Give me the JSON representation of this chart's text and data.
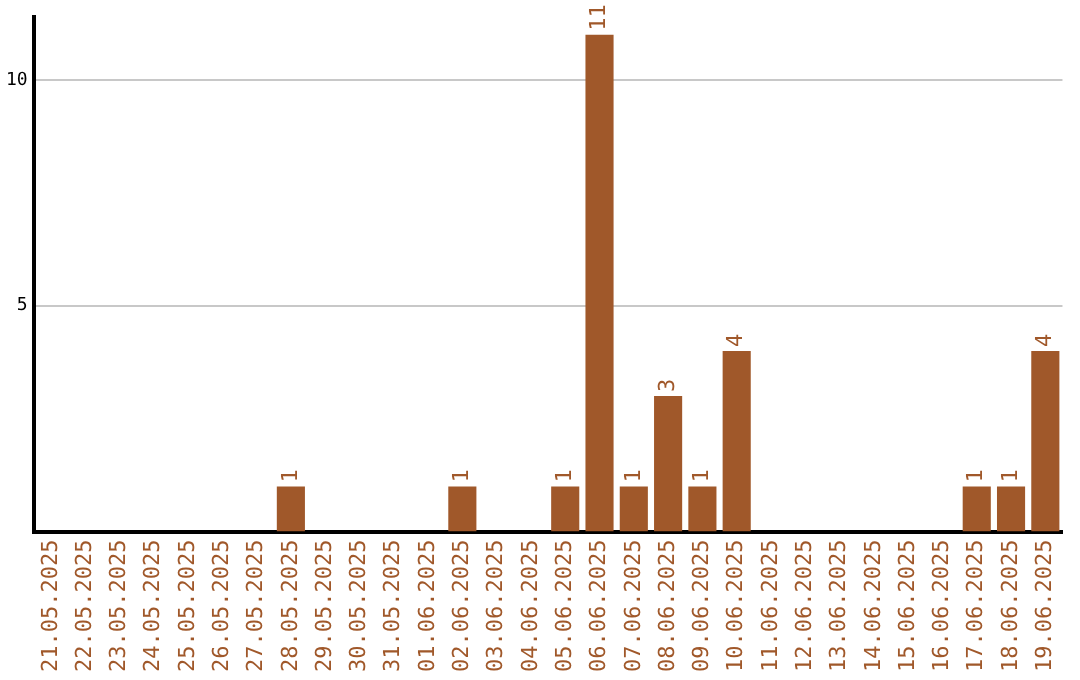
{
  "chart_data": {
    "type": "bar",
    "categories": [
      "21.05.2025",
      "22.05.2025",
      "23.05.2025",
      "24.05.2025",
      "25.05.2025",
      "26.05.2025",
      "27.05.2025",
      "28.05.2025",
      "29.05.2025",
      "30.05.2025",
      "31.05.2025",
      "01.06.2025",
      "02.06.2025",
      "03.06.2025",
      "04.06.2025",
      "05.06.2025",
      "06.06.2025",
      "07.06.2025",
      "08.06.2025",
      "09.06.2025",
      "10.06.2025",
      "11.06.2025",
      "12.06.2025",
      "13.06.2025",
      "14.06.2025",
      "15.06.2025",
      "16.06.2025",
      "17.06.2025",
      "18.06.2025",
      "19.06.2025"
    ],
    "values": [
      0,
      0,
      0,
      0,
      0,
      0,
      0,
      1,
      0,
      0,
      0,
      0,
      1,
      0,
      0,
      1,
      11,
      1,
      3,
      1,
      4,
      0,
      0,
      0,
      0,
      0,
      0,
      1,
      1,
      4
    ],
    "value_labels": [
      null,
      null,
      null,
      null,
      null,
      null,
      null,
      "1",
      null,
      null,
      null,
      null,
      "1",
      null,
      null,
      "1",
      "11",
      "1",
      "3",
      "1",
      "4",
      null,
      null,
      null,
      null,
      null,
      null,
      "1",
      "1",
      "4"
    ],
    "color": "#a0582a",
    "ylim": [
      0,
      11.4
    ],
    "yticks": [
      5,
      10
    ],
    "grid": "y",
    "legend": false
  }
}
